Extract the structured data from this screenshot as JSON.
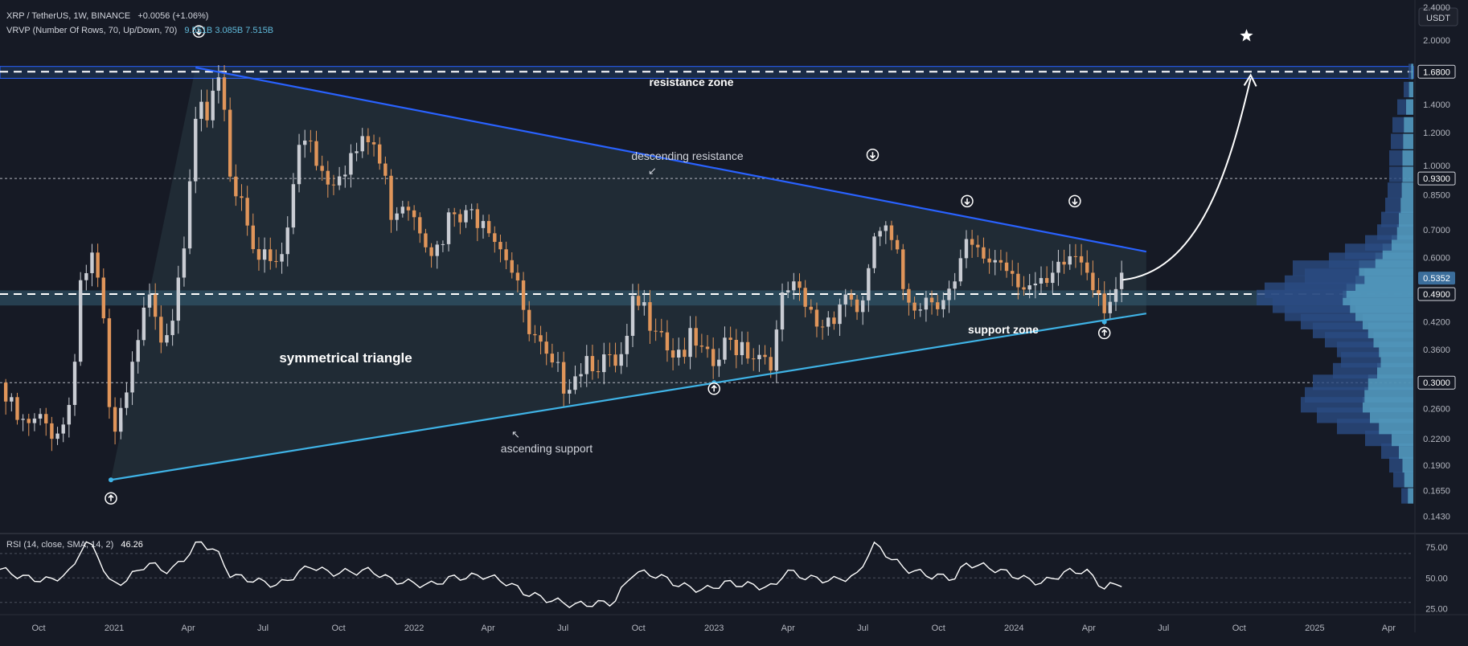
{
  "header": {
    "symbol_line": "XRP / TetherUS, 1W, BINANCE",
    "change": "+0.0056 (+1.06%)",
    "vrvp_line": "VRVP (Number Of Rows, 70, Up/Down, 70)",
    "vrvp_values": "9.551B  3.085B  7.515B"
  },
  "rsi": {
    "label": "RSI (14, close, SMA, 14, 2)",
    "value": "46.26"
  },
  "colors": {
    "up": "#c9ccd3",
    "down": "#e0955a",
    "background": "#161a25",
    "descending_line": "#2962ff",
    "ascending_line": "#3fb3e6",
    "triangle_fill": "#2a3a44",
    "support_band": "#3a6d86",
    "rsi_line": "#ffffff"
  },
  "chart_data": {
    "type": "candlestick",
    "y_axis": {
      "unit": "USDT",
      "scale": "log",
      "range": [
        0.13,
        2.5
      ],
      "ticks": [
        "2.4000",
        "2.0000",
        "1.6800",
        "1.4000",
        "1.2000",
        "1.0000",
        "0.9300",
        "0.8500",
        "0.7000",
        "0.6000",
        "0.5352",
        "0.4900",
        "0.4200",
        "0.3600",
        "0.3000",
        "0.2600",
        "0.2200",
        "0.1900",
        "0.1650",
        "0.1430"
      ],
      "highlighted_ticks": [
        "1.6800",
        "0.9300",
        "0.5352",
        "0.4900",
        "0.3000"
      ]
    },
    "x_axis": {
      "range": [
        "2020-08-15",
        "2025-05-01"
      ],
      "labels": [
        {
          "date": "2020-10-01",
          "text": "Oct"
        },
        {
          "date": "2021-01-01",
          "text": "2021"
        },
        {
          "date": "2021-04-01",
          "text": "Apr"
        },
        {
          "date": "2021-07-01",
          "text": "Jul"
        },
        {
          "date": "2021-10-01",
          "text": "Oct"
        },
        {
          "date": "2022-01-01",
          "text": "2022"
        },
        {
          "date": "2022-04-01",
          "text": "Apr"
        },
        {
          "date": "2022-07-01",
          "text": "Jul"
        },
        {
          "date": "2022-10-01",
          "text": "Oct"
        },
        {
          "date": "2023-01-01",
          "text": "2023"
        },
        {
          "date": "2023-04-01",
          "text": "Apr"
        },
        {
          "date": "2023-07-01",
          "text": "Jul"
        },
        {
          "date": "2023-10-01",
          "text": "Oct"
        },
        {
          "date": "2024-01-01",
          "text": "2024"
        },
        {
          "date": "2024-04-01",
          "text": "Apr"
        },
        {
          "date": "2024-07-01",
          "text": "Jul"
        },
        {
          "date": "2024-10-01",
          "text": "Oct"
        },
        {
          "date": "2025-01-01",
          "text": "2025"
        },
        {
          "date": "2025-04-01",
          "text": "Apr"
        }
      ]
    },
    "close_path": [
      [
        "2020-08-15",
        0.3
      ],
      [
        "2020-09-01",
        0.26
      ],
      [
        "2020-09-15",
        0.24
      ],
      [
        "2020-10-01",
        0.25
      ],
      [
        "2020-10-15",
        0.245
      ],
      [
        "2020-11-01",
        0.25
      ],
      [
        "2020-11-10",
        0.3
      ],
      [
        "2020-11-20",
        0.55
      ],
      [
        "2020-12-05",
        0.62
      ],
      [
        "2020-12-20",
        0.42
      ],
      [
        "2020-12-28",
        0.22
      ],
      [
        "2021-01-05",
        0.24
      ],
      [
        "2021-01-20",
        0.3
      ],
      [
        "2021-02-01",
        0.45
      ],
      [
        "2021-02-10",
        0.58
      ],
      [
        "2021-02-25",
        0.43
      ],
      [
        "2021-03-10",
        0.45
      ],
      [
        "2021-03-25",
        0.55
      ],
      [
        "2021-04-05",
        1.05
      ],
      [
        "2021-04-14",
        1.55
      ],
      [
        "2021-04-25",
        1.25
      ],
      [
        "2021-05-05",
        1.6
      ],
      [
        "2021-05-15",
        1.5
      ],
      [
        "2021-05-23",
        0.95
      ],
      [
        "2021-06-05",
        0.88
      ],
      [
        "2021-06-20",
        0.7
      ],
      [
        "2021-06-28",
        0.62
      ],
      [
        "2021-07-10",
        0.6
      ],
      [
        "2021-07-20",
        0.58
      ],
      [
        "2021-08-01",
        0.75
      ],
      [
        "2021-08-15",
        1.2
      ],
      [
        "2021-08-28",
        1.25
      ],
      [
        "2021-09-07",
        1.05
      ],
      [
        "2021-09-20",
        0.98
      ],
      [
        "2021-10-01",
        1.05
      ],
      [
        "2021-10-15",
        1.1
      ],
      [
        "2021-11-01",
        1.15
      ],
      [
        "2021-11-10",
        1.22
      ],
      [
        "2021-11-20",
        1.05
      ],
      [
        "2021-12-05",
        0.82
      ],
      [
        "2021-12-20",
        0.9
      ],
      [
        "2022-01-05",
        0.8
      ],
      [
        "2022-01-20",
        0.7
      ],
      [
        "2022-02-01",
        0.62
      ],
      [
        "2022-02-15",
        0.8
      ],
      [
        "2022-03-01",
        0.75
      ],
      [
        "2022-03-15",
        0.8
      ],
      [
        "2022-03-28",
        0.83
      ],
      [
        "2022-04-10",
        0.72
      ],
      [
        "2022-04-25",
        0.65
      ],
      [
        "2022-05-08",
        0.55
      ],
      [
        "2022-05-15",
        0.42
      ],
      [
        "2022-06-01",
        0.38
      ],
      [
        "2022-06-15",
        0.33
      ],
      [
        "2022-07-01",
        0.32
      ],
      [
        "2022-07-15",
        0.34
      ],
      [
        "2022-08-01",
        0.37
      ],
      [
        "2022-08-15",
        0.36
      ],
      [
        "2022-09-01",
        0.33
      ],
      [
        "2022-09-15",
        0.36
      ],
      [
        "2022-09-25",
        0.48
      ],
      [
        "2022-10-10",
        0.46
      ],
      [
        "2022-10-25",
        0.46
      ],
      [
        "2022-11-08",
        0.38
      ],
      [
        "2022-11-20",
        0.38
      ],
      [
        "2022-12-05",
        0.39
      ],
      [
        "2022-12-20",
        0.35
      ],
      [
        "2023-01-01",
        0.34
      ],
      [
        "2023-01-15",
        0.38
      ],
      [
        "2023-02-01",
        0.4
      ],
      [
        "2023-02-15",
        0.38
      ],
      [
        "2023-03-01",
        0.37
      ],
      [
        "2023-03-15",
        0.37
      ],
      [
        "2023-03-28",
        0.52
      ],
      [
        "2023-04-10",
        0.51
      ],
      [
        "2023-04-25",
        0.46
      ],
      [
        "2023-05-10",
        0.43
      ],
      [
        "2023-05-25",
        0.47
      ],
      [
        "2023-06-10",
        0.52
      ],
      [
        "2023-06-25",
        0.48
      ],
      [
        "2023-07-05",
        0.47
      ],
      [
        "2023-07-13",
        0.7
      ],
      [
        "2023-07-25",
        0.73
      ],
      [
        "2023-08-10",
        0.63
      ],
      [
        "2023-08-20",
        0.52
      ],
      [
        "2023-09-05",
        0.5
      ],
      [
        "2023-09-20",
        0.51
      ],
      [
        "2023-10-05",
        0.52
      ],
      [
        "2023-10-20",
        0.52
      ],
      [
        "2023-11-05",
        0.66
      ],
      [
        "2023-11-20",
        0.62
      ],
      [
        "2023-12-05",
        0.63
      ],
      [
        "2023-12-20",
        0.62
      ],
      [
        "2024-01-05",
        0.58
      ],
      [
        "2024-01-20",
        0.54
      ],
      [
        "2024-02-05",
        0.51
      ],
      [
        "2024-02-20",
        0.55
      ],
      [
        "2024-03-05",
        0.62
      ],
      [
        "2024-03-15",
        0.64
      ],
      [
        "2024-03-28",
        0.62
      ],
      [
        "2024-04-10",
        0.55
      ],
      [
        "2024-04-20",
        0.5
      ],
      [
        "2024-05-01",
        0.52
      ],
      [
        "2024-05-12",
        0.53
      ]
    ],
    "rsi_axis": {
      "ticks": [
        "75.00",
        "50.00",
        "25.00"
      ],
      "levels": [
        70,
        50,
        30
      ],
      "range": [
        20,
        85
      ]
    },
    "rsi_path": [
      [
        "2020-08-15",
        57
      ],
      [
        "2020-09-15",
        50
      ],
      [
        "2020-10-15",
        48
      ],
      [
        "2020-11-10",
        55
      ],
      [
        "2020-11-25",
        80
      ],
      [
        "2020-12-10",
        72
      ],
      [
        "2020-12-28",
        44
      ],
      [
        "2021-01-15",
        48
      ],
      [
        "2021-02-10",
        62
      ],
      [
        "2021-03-10",
        55
      ],
      [
        "2021-04-05",
        72
      ],
      [
        "2021-04-14",
        80
      ],
      [
        "2021-05-05",
        72
      ],
      [
        "2021-05-23",
        52
      ],
      [
        "2021-06-28",
        47
      ],
      [
        "2021-07-20",
        44
      ],
      [
        "2021-08-28",
        60
      ],
      [
        "2021-09-20",
        54
      ],
      [
        "2021-11-10",
        56
      ],
      [
        "2021-12-05",
        48
      ],
      [
        "2022-01-20",
        44
      ],
      [
        "2022-02-15",
        50
      ],
      [
        "2022-03-28",
        52
      ],
      [
        "2022-04-25",
        46
      ],
      [
        "2022-05-15",
        38
      ],
      [
        "2022-06-15",
        32
      ],
      [
        "2022-07-15",
        28
      ],
      [
        "2022-09-01",
        30
      ],
      [
        "2022-09-25",
        55
      ],
      [
        "2022-10-25",
        52
      ],
      [
        "2022-11-20",
        44
      ],
      [
        "2022-12-20",
        40
      ],
      [
        "2023-01-15",
        46
      ],
      [
        "2023-02-15",
        44
      ],
      [
        "2023-03-15",
        42
      ],
      [
        "2023-03-28",
        56
      ],
      [
        "2023-04-25",
        50
      ],
      [
        "2023-05-25",
        48
      ],
      [
        "2023-06-25",
        52
      ],
      [
        "2023-07-13",
        78
      ],
      [
        "2023-07-25",
        72
      ],
      [
        "2023-08-20",
        58
      ],
      [
        "2023-09-20",
        52
      ],
      [
        "2023-10-20",
        50
      ],
      [
        "2023-11-05",
        62
      ],
      [
        "2023-12-05",
        58
      ],
      [
        "2024-01-20",
        48
      ],
      [
        "2024-02-05",
        46
      ],
      [
        "2024-03-05",
        55
      ],
      [
        "2024-03-28",
        56
      ],
      [
        "2024-04-10",
        48
      ],
      [
        "2024-04-20",
        42
      ],
      [
        "2024-05-12",
        46
      ]
    ],
    "annotations": {
      "resistance_zone": {
        "label": "resistance zone",
        "bottom": 1.62,
        "top": 1.73
      },
      "support_zone": {
        "label": "support zone",
        "bottom": 0.46,
        "top": 0.5
      },
      "pattern_label": "symmetrical triangle",
      "descending_label": "descending resistance",
      "ascending_label": "ascending support",
      "descending_line": [
        [
          "2021-04-10",
          1.72
        ],
        [
          "2024-06-10",
          0.62
        ]
      ],
      "ascending_line": [
        [
          "2020-12-28",
          0.175
        ],
        [
          "2024-06-10",
          0.44
        ]
      ],
      "dashed_levels": [
        0.93,
        0.3
      ],
      "down_markers": [
        [
          "2021-04-14",
          2.1
        ],
        [
          "2023-07-13",
          1.06
        ],
        [
          "2023-11-05",
          0.82
        ],
        [
          "2024-03-15",
          0.82
        ]
      ],
      "up_markers": [
        [
          "2020-12-28",
          0.158
        ],
        [
          "2023-01-01",
          0.29
        ],
        [
          "2024-04-20",
          0.395
        ]
      ],
      "projection": [
        [
          "2024-05-12",
          0.53
        ],
        [
          "2024-08-15",
          0.58
        ],
        [
          "2024-09-20",
          1.0
        ],
        [
          "2024-10-15",
          1.62
        ]
      ],
      "target_star": [
        "2024-10-10",
        2.05
      ]
    }
  }
}
